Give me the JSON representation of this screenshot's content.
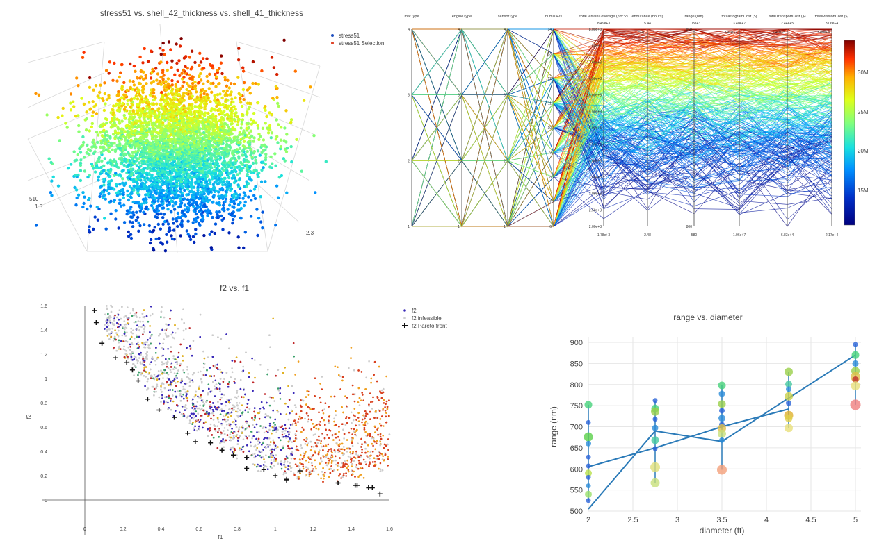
{
  "panels": {
    "scatter3d": {
      "title": "stress51 vs. shell_42_thickness vs. shell_41_thickness",
      "legend": [
        "stress51",
        "stress51 Selection"
      ],
      "axis_ticks": {
        "left_top": "510",
        "left_bottom": "1.5",
        "right": "2.3"
      }
    },
    "parallel": {
      "colorbar_ticks": [
        "30M",
        "25M",
        "20M",
        "15M"
      ]
    },
    "pareto": {
      "title": "f2 vs. f1",
      "legend": [
        "f2",
        "f2 infeasible",
        "f2 Pareto front"
      ]
    },
    "range_diameter": {
      "title": "range vs. diameter"
    }
  },
  "chart_data": [
    {
      "type": "scatter",
      "title": "stress51 vs. shell_42_thickness vs. shell_41_thickness",
      "series": [
        {
          "name": "stress51"
        },
        {
          "name": "stress51 Selection"
        }
      ],
      "ticks": [
        "510",
        "1.5",
        "2.3"
      ]
    },
    {
      "type": "line",
      "title": "",
      "kind": "parallel-coordinates",
      "axes": [
        {
          "name": "matType",
          "ticks": [
            "4",
            "3",
            "2",
            "1"
          ]
        },
        {
          "name": "engineType",
          "ticks": [
            "4",
            "3",
            "2",
            "1"
          ]
        },
        {
          "name": "sensorType",
          "ticks": [
            "4",
            "3",
            "2",
            "1"
          ]
        },
        {
          "name": "numUAVs",
          "ticks": [
            "14",
            "13",
            "12",
            "11",
            "10",
            "9",
            "8",
            "7",
            "6"
          ]
        },
        {
          "name": "totalTerrainCoverage (nm^2)",
          "top": "8.49e+3",
          "bottom": "1.78e+3",
          "ticks": [
            "8.00e+3",
            "7.50e+3",
            "7.00e+3",
            "6.50e+3",
            "6.00e+3",
            "5.50e+3",
            "5.00e+3",
            "4.50e+3",
            "4.00e+3",
            "3.50e+3",
            "3.00e+3",
            "2.50e+3",
            "2.00e+3"
          ]
        },
        {
          "name": "endurance (hours)",
          "top": "5.44",
          "bottom": "2.48",
          "ticks": [
            "5.40"
          ]
        },
        {
          "name": "range (nm)",
          "top": "1.08e+3",
          "bottom": "580",
          "ticks": [
            "850",
            "800"
          ]
        },
        {
          "name": "totalProgramCost ($)",
          "top": "3.40e+7",
          "bottom": "1.06e+7",
          "ticks": [
            "3.40e+7"
          ]
        },
        {
          "name": "totalTransportCost ($)",
          "top": "2.44e+5",
          "bottom": "6.83e+4",
          "ticks": [
            "2.40e+5"
          ]
        },
        {
          "name": "totalMissionCost ($)",
          "top": "3.06e+4",
          "bottom": "2.17e+4",
          "ticks": [
            "3.00e+4"
          ]
        }
      ],
      "colorbar": {
        "ticks": [
          "30M",
          "25M",
          "20M",
          "15M"
        ]
      }
    },
    {
      "type": "scatter",
      "title": "f2 vs. f1",
      "xlabel": "f1",
      "ylabel": "f2",
      "xlim": [
        -0.1,
        1.6
      ],
      "ylim": [
        -0.22,
        1.6
      ],
      "xticks": [
        0,
        0.2,
        0.4,
        0.6,
        0.8,
        1,
        1.2,
        1.4,
        1.6
      ],
      "yticks": [
        0,
        0.2,
        0.4,
        0.6,
        0.8,
        1,
        1.2,
        1.4,
        1.6
      ],
      "series": [
        {
          "name": "f2"
        },
        {
          "name": "f2 infeasible"
        },
        {
          "name": "f2 Pareto front",
          "x": [
            0.05,
            0.06,
            0.09,
            0.16,
            0.22,
            0.25,
            0.28,
            0.33,
            0.39,
            0.47,
            0.54,
            0.58,
            0.66,
            0.72,
            0.78,
            0.85,
            0.85,
            0.94,
            1.0,
            1.06,
            1.06,
            1.13,
            1.33,
            1.42,
            1.43,
            1.49,
            1.51,
            1.55
          ],
          "y": [
            1.56,
            1.46,
            1.29,
            1.17,
            1.13,
            1.07,
            0.98,
            0.83,
            0.74,
            0.68,
            0.55,
            0.48,
            0.47,
            0.41,
            0.37,
            0.35,
            0.26,
            0.25,
            0.2,
            0.16,
            0.17,
            0.24,
            0.14,
            0.12,
            0.12,
            0.1,
            0.1,
            0.05
          ]
        }
      ]
    },
    {
      "type": "line",
      "title": "range vs. diameter",
      "xlabel": "diameter (ft)",
      "ylabel": "range (nm)",
      "xlim": [
        2,
        5
      ],
      "ylim": [
        500,
        900
      ],
      "xticks": [
        2,
        2.5,
        3,
        3.5,
        4,
        4.5,
        5
      ],
      "yticks": [
        500,
        550,
        600,
        650,
        700,
        750,
        800,
        850,
        900
      ],
      "series": [
        {
          "name": "trend",
          "x": [
            2,
            2.75,
            3.5,
            4.25,
            5
          ],
          "y": [
            505,
            690,
            665,
            768,
            870
          ]
        },
        {
          "name": "trend2",
          "x": [
            2,
            2.75,
            3.5,
            4.25
          ],
          "y": [
            605,
            650,
            700,
            742
          ]
        }
      ],
      "points": [
        {
          "x": 2,
          "y": 752,
          "s": 9,
          "c": "#46d27a"
        },
        {
          "x": 2,
          "y": 710,
          "s": 5,
          "c": "#2a64d8"
        },
        {
          "x": 2,
          "y": 676,
          "s": 11,
          "c": "#5ad04a"
        },
        {
          "x": 2,
          "y": 660,
          "s": 6,
          "c": "#2c8cd8"
        },
        {
          "x": 2,
          "y": 628,
          "s": 5,
          "c": "#2a64d8"
        },
        {
          "x": 2,
          "y": 607,
          "s": 5,
          "c": "#2a64d8"
        },
        {
          "x": 2,
          "y": 590,
          "s": 8,
          "c": "#b8e04a"
        },
        {
          "x": 2,
          "y": 580,
          "s": 5,
          "c": "#2a64d8"
        },
        {
          "x": 2,
          "y": 560,
          "s": 5,
          "c": "#2c8cd8"
        },
        {
          "x": 2,
          "y": 540,
          "s": 8,
          "c": "#9ae06a"
        },
        {
          "x": 2,
          "y": 525,
          "s": 5,
          "c": "#2a64d8"
        },
        {
          "x": 2.75,
          "y": 762,
          "s": 5,
          "c": "#2a64d8"
        },
        {
          "x": 2.75,
          "y": 743,
          "s": 9,
          "c": "#46d27a"
        },
        {
          "x": 2.75,
          "y": 736,
          "s": 10,
          "c": "#9ad04a"
        },
        {
          "x": 2.75,
          "y": 718,
          "s": 5,
          "c": "#2a64d8"
        },
        {
          "x": 2.75,
          "y": 697,
          "s": 7,
          "c": "#2c8cd8"
        },
        {
          "x": 2.75,
          "y": 668,
          "s": 9,
          "c": "#46c8a0"
        },
        {
          "x": 2.75,
          "y": 648,
          "s": 5,
          "c": "#2a64d8"
        },
        {
          "x": 2.75,
          "y": 604,
          "s": 12,
          "c": "#e0e07a"
        },
        {
          "x": 2.75,
          "y": 567,
          "s": 11,
          "c": "#c8e07a"
        },
        {
          "x": 3.5,
          "y": 798,
          "s": 9,
          "c": "#46d27a"
        },
        {
          "x": 3.5,
          "y": 778,
          "s": 7,
          "c": "#2c8cd8"
        },
        {
          "x": 3.5,
          "y": 754,
          "s": 9,
          "c": "#9ad04a"
        },
        {
          "x": 3.5,
          "y": 738,
          "s": 6,
          "c": "#2a64d8"
        },
        {
          "x": 3.5,
          "y": 720,
          "s": 8,
          "c": "#2c8cd8"
        },
        {
          "x": 3.5,
          "y": 705,
          "s": 6,
          "c": "#2a64d8"
        },
        {
          "x": 3.5,
          "y": 696,
          "s": 10,
          "c": "#e0c04a"
        },
        {
          "x": 3.5,
          "y": 683,
          "s": 10,
          "c": "#c8e07a"
        },
        {
          "x": 3.5,
          "y": 668,
          "s": 6,
          "c": "#2c8cd8"
        },
        {
          "x": 3.5,
          "y": 598,
          "s": 12,
          "c": "#f4a07a"
        },
        {
          "x": 4.25,
          "y": 830,
          "s": 10,
          "c": "#9ad04a"
        },
        {
          "x": 4.25,
          "y": 801,
          "s": 8,
          "c": "#46c8a0"
        },
        {
          "x": 4.25,
          "y": 789,
          "s": 6,
          "c": "#2c8cd8"
        },
        {
          "x": 4.25,
          "y": 772,
          "s": 10,
          "c": "#c8d04a"
        },
        {
          "x": 4.25,
          "y": 756,
          "s": 6,
          "c": "#2a64d8"
        },
        {
          "x": 4.25,
          "y": 727,
          "s": 11,
          "c": "#e0b030"
        },
        {
          "x": 4.25,
          "y": 720,
          "s": 9,
          "c": "#e0d04a"
        },
        {
          "x": 4.25,
          "y": 697,
          "s": 10,
          "c": "#e8e07a"
        },
        {
          "x": 5,
          "y": 895,
          "s": 5,
          "c": "#2a64d8"
        },
        {
          "x": 5,
          "y": 870,
          "s": 9,
          "c": "#46d27a"
        },
        {
          "x": 5,
          "y": 850,
          "s": 7,
          "c": "#2c8cd8"
        },
        {
          "x": 5,
          "y": 832,
          "s": 10,
          "c": "#9ad04a"
        },
        {
          "x": 5,
          "y": 818,
          "s": 12,
          "c": "#e0c04a"
        },
        {
          "x": 5,
          "y": 812,
          "s": 7,
          "c": "#c0302a"
        },
        {
          "x": 5,
          "y": 797,
          "s": 11,
          "c": "#e8e07a"
        },
        {
          "x": 5,
          "y": 752,
          "s": 13,
          "c": "#f08080"
        }
      ]
    }
  ]
}
